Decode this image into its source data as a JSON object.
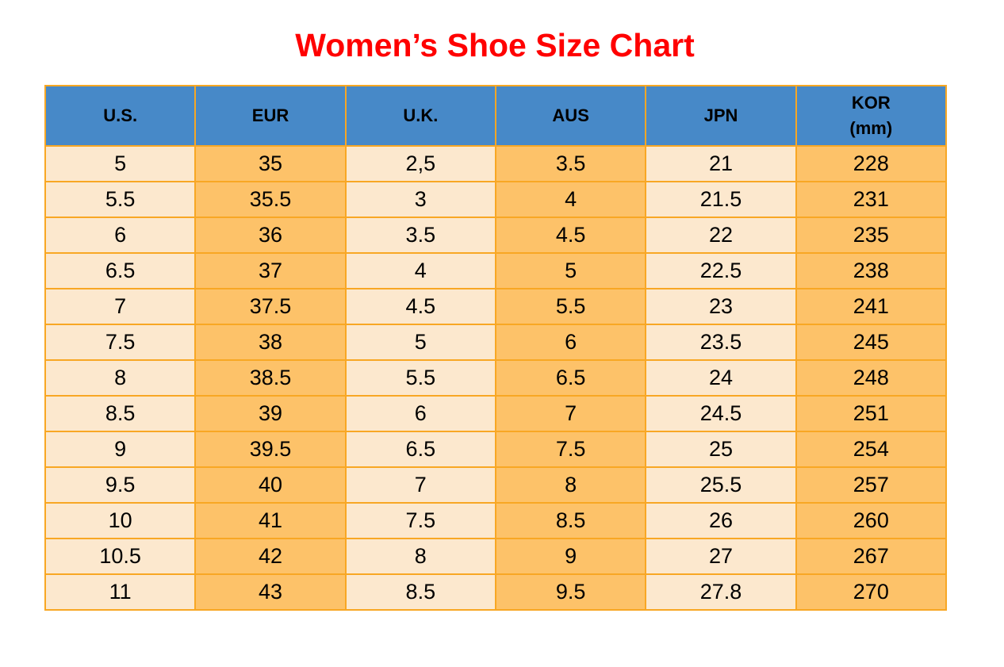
{
  "page": {
    "title": "Women’s Shoe Size Chart"
  },
  "colors": {
    "title": "#ff0000",
    "header_bg": "#4789c8",
    "header_text": "#000000",
    "cell_text": "#000000",
    "col_light": "#fce8ce",
    "col_orange": "#fdc269",
    "border": "#f8a724",
    "background": "#ffffff"
  },
  "chart_data": {
    "type": "table",
    "title": "Women’s Shoe Size Chart",
    "columns": [
      "U.S.",
      "EUR",
      "U.K.",
      "AUS",
      "JPN",
      "KOR\n(mm)"
    ],
    "rows": [
      [
        "5",
        "35",
        "2,5",
        "3.5",
        "21",
        "228"
      ],
      [
        "5.5",
        "35.5",
        "3",
        "4",
        "21.5",
        "231"
      ],
      [
        "6",
        "36",
        "3.5",
        "4.5",
        "22",
        "235"
      ],
      [
        "6.5",
        "37",
        "4",
        "5",
        "22.5",
        "238"
      ],
      [
        "7",
        "37.5",
        "4.5",
        "5.5",
        "23",
        "241"
      ],
      [
        "7.5",
        "38",
        "5",
        "6",
        "23.5",
        "245"
      ],
      [
        "8",
        "38.5",
        "5.5",
        "6.5",
        "24",
        "248"
      ],
      [
        "8.5",
        "39",
        "6",
        "7",
        "24.5",
        "251"
      ],
      [
        "9",
        "39.5",
        "6.5",
        "7.5",
        "25",
        "254"
      ],
      [
        "9.5",
        "40",
        "7",
        "8",
        "25.5",
        "257"
      ],
      [
        "10",
        "41",
        "7.5",
        "8.5",
        "26",
        "260"
      ],
      [
        "10.5",
        "42",
        "8",
        "9",
        "27",
        "267"
      ],
      [
        "11",
        "43",
        "8.5",
        "9.5",
        "27.8",
        "270"
      ]
    ],
    "layout": {
      "column_fill_pattern": [
        "light",
        "orange",
        "light",
        "orange",
        "light",
        "orange"
      ],
      "grid": true,
      "header_position": "top",
      "legend": "none"
    }
  }
}
